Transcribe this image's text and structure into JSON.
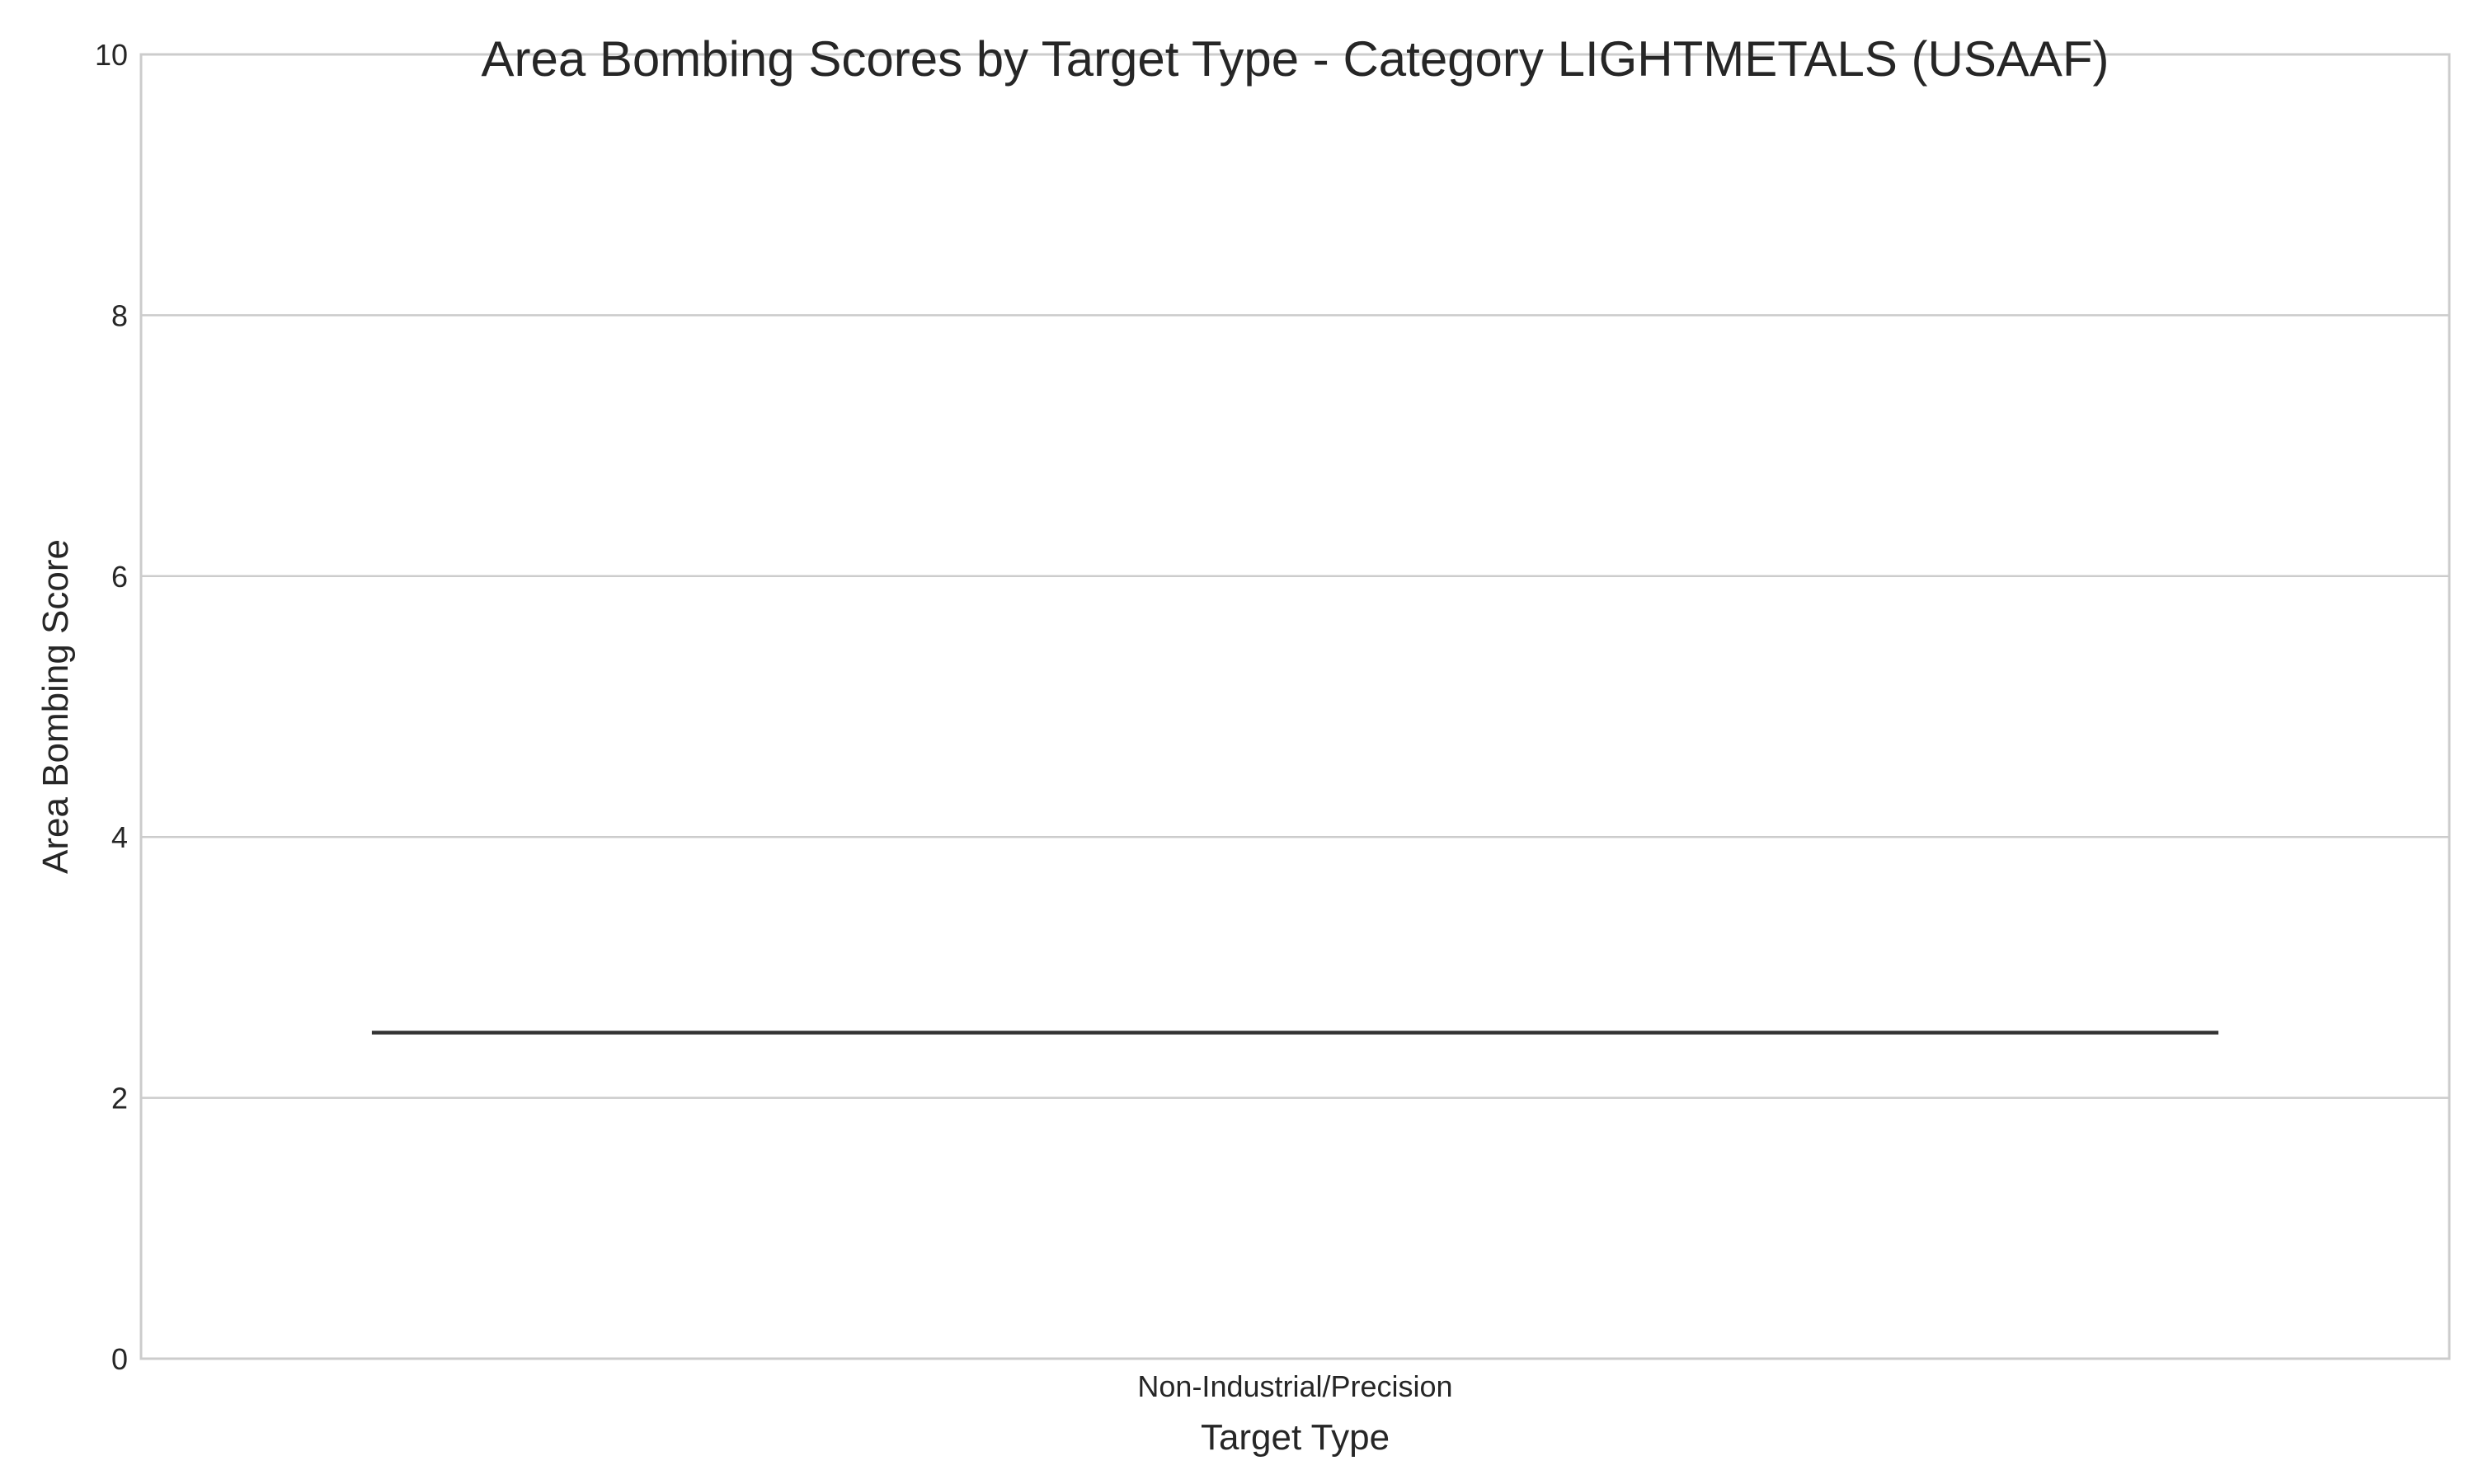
{
  "chart_data": {
    "type": "box",
    "title": "Area Bombing Scores by Target Type - Category LIGHTMETALS (USAAF)",
    "xlabel": "Target Type",
    "ylabel": "Area Bombing Score",
    "categories": [
      "Non-Industrial/Precision"
    ],
    "series": [
      {
        "values": [
          2.5
        ]
      }
    ],
    "ylim": [
      0,
      10
    ],
    "yticks": [
      0,
      2,
      4,
      6,
      8,
      10
    ],
    "grid": true,
    "grid_axis": "y",
    "colors": {
      "grid": "#cccccc",
      "frame": "#cccccc",
      "line": "#333333",
      "text": "#262626"
    }
  }
}
